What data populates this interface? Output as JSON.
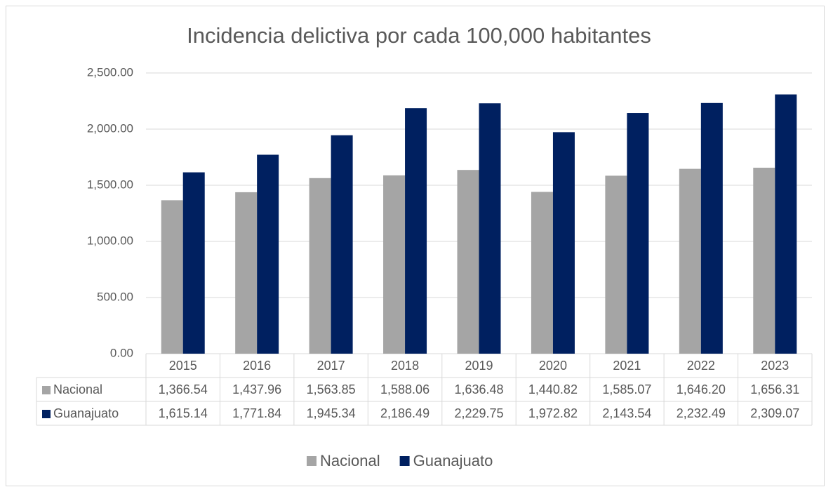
{
  "chart_data": {
    "type": "bar",
    "title": "Incidencia delictiva por cada 100,000 habitantes",
    "categories": [
      "2015",
      "2016",
      "2017",
      "2018",
      "2019",
      "2020",
      "2021",
      "2022",
      "2023"
    ],
    "series": [
      {
        "name": "Nacional",
        "color": "#a5a5a5",
        "values": [
          1366.54,
          1437.96,
          1563.85,
          1588.06,
          1636.48,
          1440.82,
          1585.07,
          1646.2,
          1656.31
        ],
        "value_labels": [
          "1,366.54",
          "1,437.96",
          "1,563.85",
          "1,588.06",
          "1,636.48",
          "1,440.82",
          "1,585.07",
          "1,646.20",
          "1,656.31"
        ]
      },
      {
        "name": "Guanajuato",
        "color": "#002060",
        "values": [
          1615.14,
          1771.84,
          1945.34,
          2186.49,
          2229.75,
          1972.82,
          2143.54,
          2232.49,
          2309.07
        ],
        "value_labels": [
          "1,615.14",
          "1,771.84",
          "1,945.34",
          "2,186.49",
          "2,229.75",
          "1,972.82",
          "2,143.54",
          "2,232.49",
          "2,309.07"
        ]
      }
    ],
    "ylim": [
      0,
      2500
    ],
    "yticks": [
      {
        "value": 0,
        "label": "0.00"
      },
      {
        "value": 500,
        "label": "500.00"
      },
      {
        "value": 1000,
        "label": "1,000.00"
      },
      {
        "value": 1500,
        "label": "1,500.00"
      },
      {
        "value": 2000,
        "label": "2,000.00"
      },
      {
        "value": 2500,
        "label": "2,500.00"
      }
    ],
    "grid": true
  }
}
